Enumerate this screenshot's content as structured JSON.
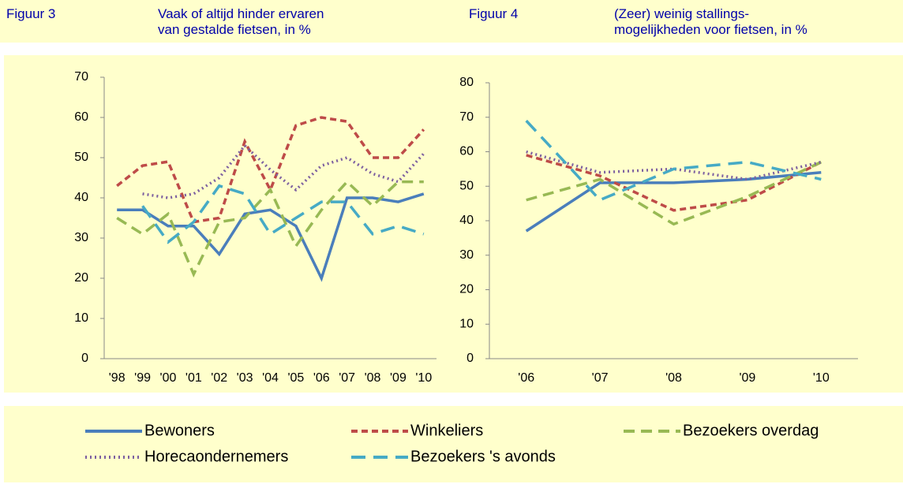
{
  "chart_data": [
    {
      "type": "line",
      "label": "Figuur 3",
      "title": "Vaak of altijd hinder ervaren\nvan gestalde fietsen, in %",
      "categories": [
        "'98",
        "'99",
        "'00",
        "'01",
        "'02",
        "'03",
        "'04",
        "'05",
        "'06",
        "'07",
        "'08",
        "'09",
        "'10"
      ],
      "ylim": [
        0,
        70
      ],
      "yticks": [
        0,
        10,
        20,
        30,
        40,
        50,
        60,
        70
      ],
      "series": [
        {
          "name": "Bewoners",
          "color": "#4a7ebb",
          "values": [
            37,
            37,
            33,
            33,
            26,
            36,
            37,
            33,
            20,
            40,
            40,
            39,
            41
          ]
        },
        {
          "name": "Winkeliers",
          "color": "#be4b48",
          "values": [
            43,
            48,
            49,
            34,
            35,
            54,
            42,
            58,
            60,
            59,
            50,
            50,
            57
          ]
        },
        {
          "name": "Bezoekers overdag",
          "color": "#98b954",
          "values": [
            35,
            31,
            36,
            21,
            34,
            35,
            42,
            28,
            37,
            44,
            38,
            44,
            44
          ]
        },
        {
          "name": "Horecaondernemers",
          "color": "#7d60a0",
          "values": [
            null,
            41,
            40,
            41,
            45,
            53,
            47,
            42,
            48,
            50,
            46,
            44,
            51
          ]
        },
        {
          "name": "Bezoekers 's avonds",
          "color": "#46aac5",
          "values": [
            null,
            38,
            29,
            34,
            43,
            41,
            31,
            35,
            39,
            39,
            31,
            33,
            31
          ]
        }
      ]
    },
    {
      "type": "line",
      "label": "Figuur 4",
      "title": "(Zeer) weinig stallings-\nmogelijkheden voor fietsen, in %",
      "categories": [
        "'06",
        "'07",
        "'08",
        "'09",
        "'10"
      ],
      "ylim": [
        0,
        80
      ],
      "yticks": [
        0,
        10,
        20,
        30,
        40,
        50,
        60,
        70,
        80
      ],
      "series": [
        {
          "color": "#4a7ebb",
          "values": [
            37,
            51,
            51,
            52,
            54
          ]
        },
        {
          "color": "#be4b48",
          "values": [
            59,
            53,
            43,
            46,
            57
          ]
        },
        {
          "color": "#98b954",
          "values": [
            46,
            52,
            39,
            47,
            57
          ]
        },
        {
          "color": "#7d60a0",
          "values": [
            60,
            54,
            55,
            52,
            57
          ]
        },
        {
          "color": "#46aac5",
          "values": [
            69,
            46,
            55,
            57,
            52
          ]
        }
      ]
    }
  ]
}
